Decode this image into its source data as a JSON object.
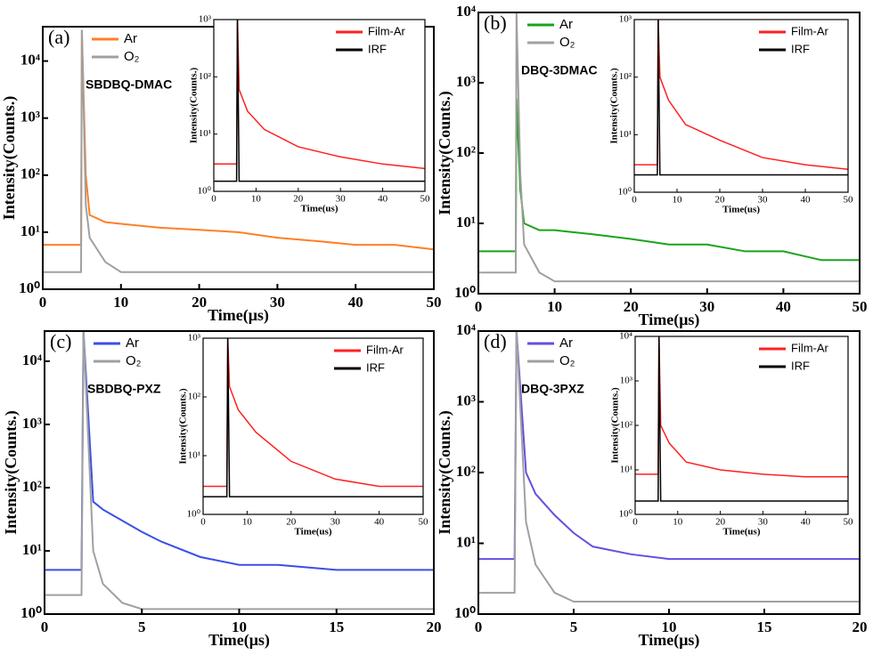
{
  "chart_data": [
    {
      "type": "line",
      "label": "(a)",
      "annotation": "SBDBQ-DMAC",
      "x_label": "Time(μs)",
      "y_label": "Intensity(Counts.)",
      "log_y": true,
      "legend": "upper left",
      "x": [
        0,
        2,
        4,
        4.9,
        5,
        5.5,
        6,
        8,
        10,
        15,
        20,
        25,
        30,
        35,
        40,
        45,
        50
      ],
      "xlim": [
        0,
        50
      ],
      "xticks": [
        0,
        10,
        20,
        30,
        40,
        50
      ],
      "ylim": [
        1,
        40000
      ],
      "yticks": [
        {
          "value": 1,
          "label": "10⁰"
        },
        {
          "value": 10,
          "label": "10¹"
        },
        {
          "value": 100,
          "label": "10²"
        },
        {
          "value": 1000,
          "label": "10³"
        },
        {
          "value": 10000,
          "label": "10⁴"
        }
      ],
      "series": [
        {
          "name": "Ar",
          "color": "#ff7f27",
          "values": [
            6,
            6,
            6,
            6,
            35000,
            100,
            20,
            15,
            14,
            12,
            11,
            10,
            8,
            7,
            6,
            6,
            5
          ]
        },
        {
          "name": "O₂",
          "color": "#a0a0a0",
          "values": [
            2,
            2,
            2,
            2,
            35000,
            30,
            8,
            3,
            2,
            2,
            2,
            2,
            2,
            2,
            2,
            2,
            2
          ]
        }
      ]
    },
    {
      "type": "line",
      "x_label": "Time(us)",
      "y_label": "Intensity(Counts.)",
      "log_y": true,
      "legend": "upper right",
      "x": [
        0,
        3,
        5.4,
        5.6,
        6,
        8,
        12,
        20,
        30,
        40,
        50
      ],
      "xlim": [
        0,
        50
      ],
      "xticks": [
        0,
        10,
        20,
        30,
        40,
        50
      ],
      "ylim": [
        1,
        1000
      ],
      "yticks": [
        {
          "value": 1,
          "label": "10⁰"
        },
        {
          "value": 10,
          "label": "10¹"
        },
        {
          "value": 100,
          "label": "10²"
        },
        {
          "value": 1000,
          "label": "10³"
        }
      ],
      "series": [
        {
          "name": "Film-Ar",
          "color": "#ff2020",
          "values": [
            3,
            3,
            3,
            1000,
            60,
            25,
            12,
            6,
            4,
            3,
            2.5
          ]
        },
        {
          "name": "IRF",
          "color": "#000000",
          "values": [
            1.5,
            1.5,
            1.5,
            1000,
            1.5,
            1.5,
            1.5,
            1.5,
            1.5,
            1.5,
            1.5
          ]
        }
      ]
    },
    {
      "type": "line",
      "label": "(b)",
      "annotation": "DBQ-3DMAC",
      "x_label": "Time(μs)",
      "y_label": "Intensity(Counts.)",
      "log_y": true,
      "legend": "upper left",
      "x": [
        0,
        2,
        4,
        4.9,
        5,
        5.5,
        6,
        8,
        10,
        15,
        20,
        25,
        30,
        35,
        40,
        45,
        50
      ],
      "xlim": [
        0,
        50
      ],
      "xticks": [
        0,
        10,
        20,
        30,
        40,
        50
      ],
      "ylim": [
        1,
        10000
      ],
      "yticks": [
        {
          "value": 1,
          "label": "10⁰"
        },
        {
          "value": 10,
          "label": "10¹"
        },
        {
          "value": 100,
          "label": "10²"
        },
        {
          "value": 1000,
          "label": "10³"
        },
        {
          "value": 10000,
          "label": "10⁴"
        }
      ],
      "series": [
        {
          "name": "Ar",
          "color": "#1aa31a",
          "values": [
            4,
            4,
            4,
            4,
            600,
            30,
            10,
            8,
            8,
            7,
            6,
            5,
            5,
            4,
            4,
            3,
            3
          ]
        },
        {
          "name": "O₂",
          "color": "#a0a0a0",
          "values": [
            2,
            2,
            2,
            2,
            10000,
            50,
            5,
            2,
            1.5,
            1.5,
            1.5,
            1.5,
            1.5,
            1.5,
            1.5,
            1.5,
            1.5
          ]
        }
      ]
    },
    {
      "type": "line",
      "x_label": "Time(us)",
      "y_label": "Intensity(Counts.)",
      "log_y": true,
      "legend": "upper right",
      "x": [
        0,
        3,
        5.4,
        5.6,
        6,
        8,
        12,
        20,
        30,
        40,
        50
      ],
      "xlim": [
        0,
        50
      ],
      "xticks": [
        0,
        10,
        20,
        30,
        40,
        50
      ],
      "ylim": [
        1,
        1000
      ],
      "yticks": [
        {
          "value": 1,
          "label": "10⁰"
        },
        {
          "value": 10,
          "label": "10¹"
        },
        {
          "value": 100,
          "label": "10²"
        },
        {
          "value": 1000,
          "label": "10³"
        }
      ],
      "series": [
        {
          "name": "Film-Ar",
          "color": "#ff2020",
          "values": [
            3,
            3,
            3,
            1000,
            100,
            40,
            15,
            8,
            4,
            3,
            2.5
          ]
        },
        {
          "name": "IRF",
          "color": "#000000",
          "values": [
            2,
            2,
            2,
            1000,
            2,
            2,
            2,
            2,
            2,
            2,
            2
          ]
        }
      ]
    },
    {
      "type": "line",
      "label": "(c)",
      "annotation": "SBDBQ-PXZ",
      "x_label": "Time(μs)",
      "y_label": "Intensity(Counts.)",
      "log_y": true,
      "legend": "upper left",
      "x": [
        0,
        1,
        1.9,
        2,
        2.5,
        3,
        4,
        5,
        6,
        8,
        10,
        12,
        15,
        18,
        20
      ],
      "xlim": [
        0,
        20
      ],
      "xticks": [
        0,
        5,
        10,
        15,
        20
      ],
      "ylim": [
        1,
        30000
      ],
      "yticks": [
        {
          "value": 1,
          "label": "10⁰"
        },
        {
          "value": 10,
          "label": "10¹"
        },
        {
          "value": 100,
          "label": "10²"
        },
        {
          "value": 1000,
          "label": "10³"
        },
        {
          "value": 10000,
          "label": "10⁴"
        }
      ],
      "series": [
        {
          "name": "Ar",
          "color": "#3a4fe8",
          "values": [
            5,
            5,
            5,
            30000,
            60,
            45,
            30,
            20,
            14,
            8,
            6,
            6,
            5,
            5,
            5
          ]
        },
        {
          "name": "O₂",
          "color": "#a0a0a0",
          "values": [
            2,
            2,
            2,
            30000,
            10,
            3,
            1.5,
            1.2,
            1.2,
            1.2,
            1.2,
            1.2,
            1.2,
            1.2,
            1.2
          ]
        }
      ]
    },
    {
      "type": "line",
      "x_label": "Time(us)",
      "y_label": "Intensity(Counts.)",
      "log_y": true,
      "legend": "upper right",
      "x": [
        0,
        3,
        5.4,
        5.6,
        6,
        8,
        12,
        20,
        30,
        40,
        50
      ],
      "xlim": [
        0,
        50
      ],
      "xticks": [
        0,
        10,
        20,
        30,
        40,
        50
      ],
      "ylim": [
        1,
        1000
      ],
      "yticks": [
        {
          "value": 1,
          "label": "10⁰"
        },
        {
          "value": 10,
          "label": "10¹"
        },
        {
          "value": 100,
          "label": "10²"
        },
        {
          "value": 1000,
          "label": "10³"
        }
      ],
      "series": [
        {
          "name": "Film-Ar",
          "color": "#ff2020",
          "values": [
            3,
            3,
            3,
            1000,
            150,
            60,
            25,
            8,
            4,
            3,
            3
          ]
        },
        {
          "name": "IRF",
          "color": "#000000",
          "values": [
            2,
            2,
            2,
            1000,
            2,
            2,
            2,
            2,
            2,
            2,
            2
          ]
        }
      ]
    },
    {
      "type": "line",
      "label": "(d)",
      "annotation": "DBQ-3PXZ",
      "x_label": "Time(μs)",
      "y_label": "Intensity(Counts.)",
      "log_y": true,
      "legend": "upper left",
      "x": [
        0,
        1,
        1.9,
        2,
        2.5,
        3,
        4,
        5,
        6,
        8,
        10,
        12,
        15,
        18,
        20
      ],
      "xlim": [
        0,
        20
      ],
      "xticks": [
        0,
        5,
        10,
        15,
        20
      ],
      "ylim": [
        1,
        10000
      ],
      "yticks": [
        {
          "value": 1,
          "label": "10⁰"
        },
        {
          "value": 10,
          "label": "10¹"
        },
        {
          "value": 100,
          "label": "10²"
        },
        {
          "value": 1000,
          "label": "10³"
        },
        {
          "value": 10000,
          "label": "10⁴"
        }
      ],
      "series": [
        {
          "name": "Ar",
          "color": "#6a4ce0",
          "values": [
            6,
            6,
            6,
            10000,
            100,
            50,
            25,
            14,
            9,
            7,
            6,
            6,
            6,
            6,
            6
          ]
        },
        {
          "name": "O₂",
          "color": "#a0a0a0",
          "values": [
            2,
            2,
            2,
            10000,
            20,
            5,
            2,
            1.5,
            1.5,
            1.5,
            1.5,
            1.5,
            1.5,
            1.5,
            1.5
          ]
        }
      ]
    },
    {
      "type": "line",
      "x_label": "Time(us)",
      "y_label": "Intensity(Counts.)",
      "log_y": true,
      "legend": "upper right",
      "x": [
        0,
        3,
        5.4,
        5.6,
        6,
        8,
        12,
        20,
        30,
        40,
        50
      ],
      "xlim": [
        0,
        50
      ],
      "xticks": [
        0,
        10,
        20,
        30,
        40,
        50
      ],
      "ylim": [
        1,
        10000
      ],
      "yticks": [
        {
          "value": 1,
          "label": "10⁰"
        },
        {
          "value": 10,
          "label": "10¹"
        },
        {
          "value": 100,
          "label": "10²"
        },
        {
          "value": 1000,
          "label": "10³"
        },
        {
          "value": 10000,
          "label": "10⁴"
        }
      ],
      "series": [
        {
          "name": "Film-Ar",
          "color": "#ff2020",
          "values": [
            8,
            8,
            8,
            10000,
            100,
            40,
            15,
            10,
            8,
            7,
            7
          ]
        },
        {
          "name": "IRF",
          "color": "#000000",
          "values": [
            2,
            2,
            2,
            10000,
            2,
            2,
            2,
            2,
            2,
            2,
            2
          ]
        }
      ]
    }
  ]
}
